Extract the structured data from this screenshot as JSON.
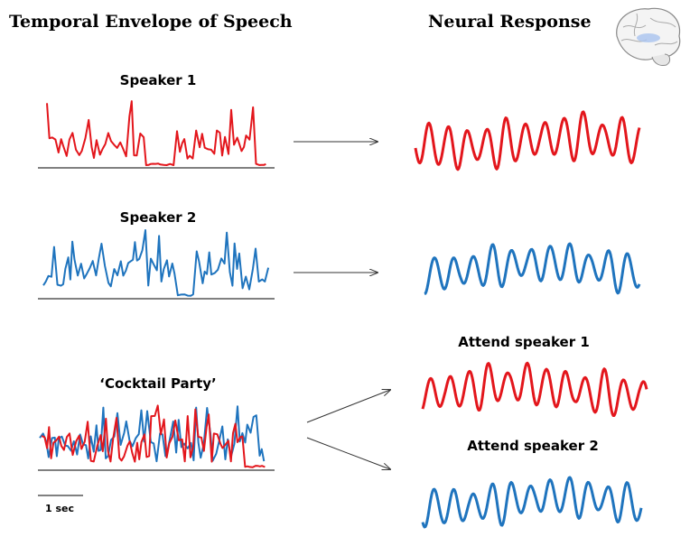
{
  "header": {
    "left_title": "Temporal Envelope of Speech",
    "right_title": "Neural Response"
  },
  "envelopes": [
    {
      "label": "Speaker 1"
    },
    {
      "label": "Speaker 2"
    },
    {
      "label": "‘Cocktail Party’"
    }
  ],
  "responses": [
    {
      "label": "Attend speaker 1"
    },
    {
      "label": "Attend speaker 2"
    }
  ],
  "scale_bar": {
    "label": "1 sec"
  }
}
